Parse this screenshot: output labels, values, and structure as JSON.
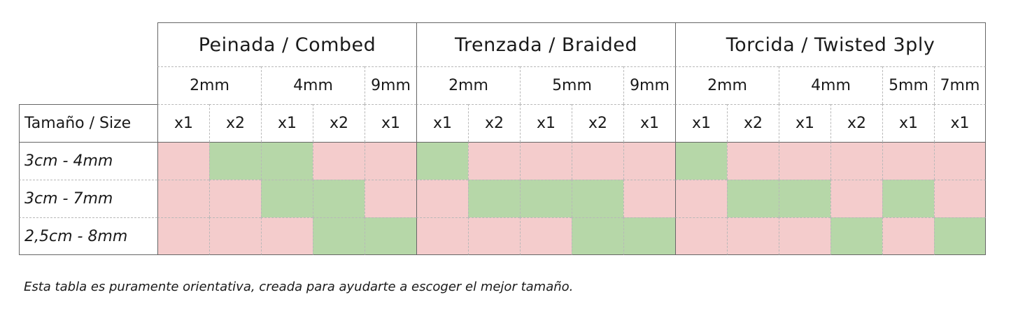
{
  "colors": {
    "fit": "#b6d7a8",
    "no_fit": "#f4cccc",
    "border": "#666666",
    "inner_line": "#b8b8b8"
  },
  "table": {
    "families": [
      {
        "label": "Peinada / Combed"
      },
      {
        "label": "Trenzada / Braided"
      },
      {
        "label": "Torcida / Twisted 3ply"
      }
    ],
    "size_groups": [
      {
        "label": "2mm"
      },
      {
        "label": "4mm"
      },
      {
        "label": "9mm"
      },
      {
        "label": "2mm"
      },
      {
        "label": "5mm"
      },
      {
        "label": "9mm"
      },
      {
        "label": "2mm"
      },
      {
        "label": "4mm"
      },
      {
        "label": "5mm"
      },
      {
        "label": "7mm"
      }
    ],
    "row_header": "Tamaño / Size",
    "multipliers": [
      "x1",
      "x2",
      "x1",
      "x2",
      "x1",
      "x1",
      "x2",
      "x1",
      "x2",
      "x1",
      "x1",
      "x2",
      "x1",
      "x2",
      "x1",
      "x1"
    ],
    "rows": [
      {
        "label": "3cm - 4mm",
        "cells": [
          "no",
          "fit",
          "fit",
          "no",
          "no",
          "fit",
          "no",
          "no",
          "no",
          "no",
          "fit",
          "no",
          "no",
          "no",
          "no",
          "no"
        ]
      },
      {
        "label": "3cm - 7mm",
        "cells": [
          "no",
          "no",
          "fit",
          "fit",
          "no",
          "no",
          "fit",
          "fit",
          "fit",
          "no",
          "no",
          "fit",
          "fit",
          "no",
          "fit",
          "no"
        ]
      },
      {
        "label": "2,5cm - 8mm",
        "cells": [
          "no",
          "no",
          "no",
          "fit",
          "fit",
          "no",
          "no",
          "no",
          "fit",
          "fit",
          "no",
          "no",
          "no",
          "fit",
          "no",
          "fit"
        ]
      }
    ]
  },
  "footnote": "Esta tabla es puramente orientativa, creada para ayudarte a escoger el mejor tamaño."
}
